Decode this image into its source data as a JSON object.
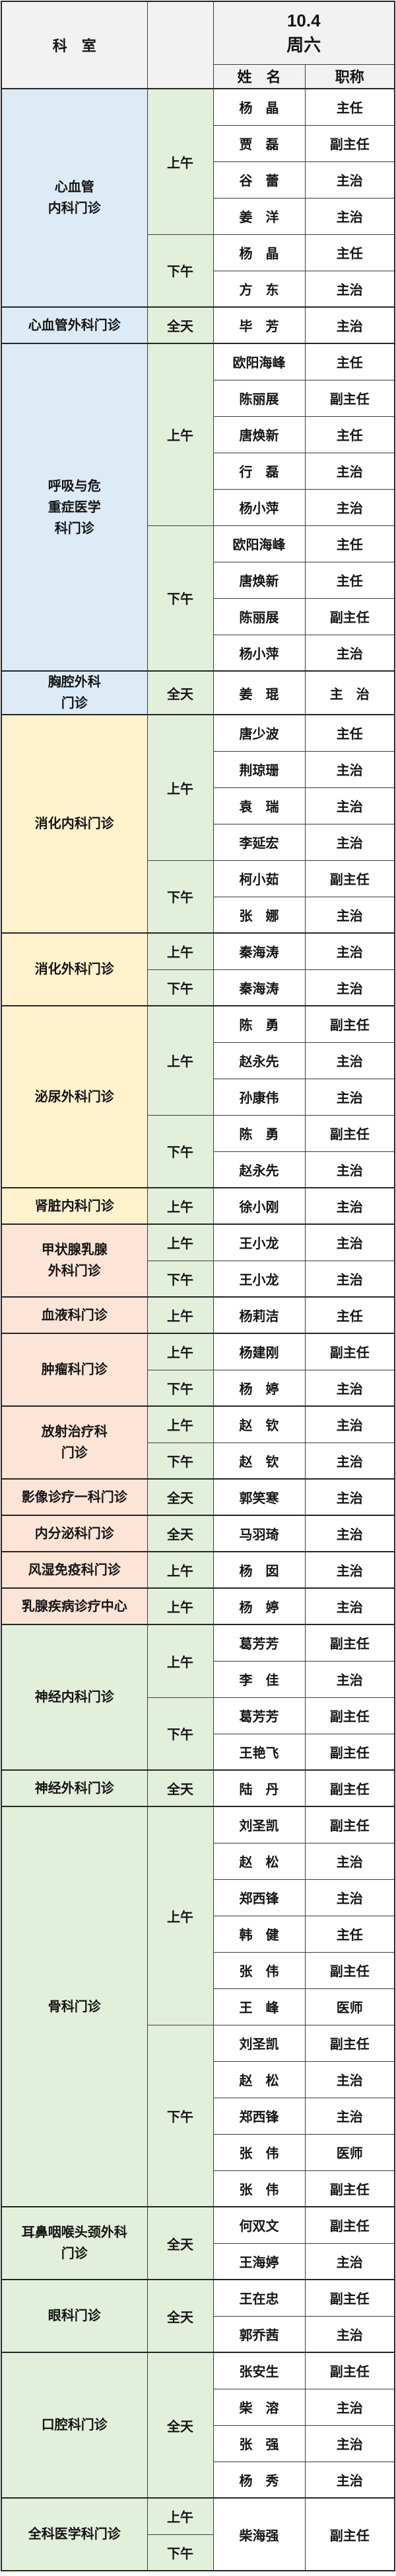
{
  "header": {
    "department_col": "科　室",
    "date": "10.4",
    "weekday": "周六",
    "name_col": "姓　名",
    "title_col": "职称"
  },
  "colors": {
    "header_bg": "#f2f2f2",
    "group_blue": "#ddebf7",
    "group_yellow": "#fff2cc",
    "group_pink": "#fce4d6",
    "group_green": "#e2efda",
    "time_column": "#e2efda",
    "cell_bg": "#ffffff",
    "border": "#262626"
  },
  "time_labels": [
    "上午",
    "下午",
    "全天"
  ],
  "title_labels": [
    "主任",
    "副主任",
    "主治",
    "医师"
  ],
  "sections": [
    {
      "department": "心血管\n内科门诊",
      "color": "blue",
      "blocks": [
        {
          "time": "上午",
          "doctors": [
            {
              "name": "杨　晶",
              "title": "主任"
            },
            {
              "name": "贾　磊",
              "title": "副主任"
            },
            {
              "name": "谷　蕾",
              "title": "主治"
            },
            {
              "name": "姜　洋",
              "title": "主治"
            }
          ]
        },
        {
          "time": "下午",
          "doctors": [
            {
              "name": "杨　晶",
              "title": "主任"
            },
            {
              "name": "方　东",
              "title": "主治"
            }
          ]
        }
      ]
    },
    {
      "department": "心血管外科门诊",
      "color": "blue",
      "blocks": [
        {
          "time": "全天",
          "doctors": [
            {
              "name": "毕　芳",
              "title": "主治"
            }
          ]
        }
      ]
    },
    {
      "department": "呼吸与危\n重症医学\n科门诊",
      "color": "blue",
      "blocks": [
        {
          "time": "上午",
          "doctors": [
            {
              "name": "欧阳海峰",
              "title": "主任"
            },
            {
              "name": "陈丽展",
              "title": "副主任"
            },
            {
              "name": "唐焕新",
              "title": "主任"
            },
            {
              "name": "行　磊",
              "title": "主治"
            },
            {
              "name": "杨小萍",
              "title": "主治"
            }
          ]
        },
        {
          "time": "下午",
          "doctors": [
            {
              "name": "欧阳海峰",
              "title": "主任"
            },
            {
              "name": "唐焕新",
              "title": "主任"
            },
            {
              "name": "陈丽展",
              "title": "副主任"
            },
            {
              "name": "杨小萍",
              "title": "主治"
            }
          ]
        }
      ]
    },
    {
      "department": "胸腔外科\n门诊",
      "color": "blue",
      "blocks": [
        {
          "time": "全天",
          "doctors": [
            {
              "name": "姜　琨",
              "title": "主　治"
            }
          ]
        }
      ]
    },
    {
      "department": "消化内科门诊",
      "color": "yellow",
      "blocks": [
        {
          "time": "上午",
          "doctors": [
            {
              "name": "唐少波",
              "title": "主任"
            },
            {
              "name": "荆琼珊",
              "title": "主治"
            },
            {
              "name": "袁　瑞",
              "title": "主治"
            },
            {
              "name": "李延宏",
              "title": "主治"
            }
          ]
        },
        {
          "time": "下午",
          "doctors": [
            {
              "name": "柯小茹",
              "title": "副主任"
            },
            {
              "name": "张　娜",
              "title": "主治"
            }
          ]
        }
      ]
    },
    {
      "department": "消化外科门诊",
      "color": "yellow",
      "blocks": [
        {
          "time": "上午",
          "doctors": [
            {
              "name": "秦海涛",
              "title": "主治"
            }
          ]
        },
        {
          "time": "下午",
          "doctors": [
            {
              "name": "秦海涛",
              "title": "主治"
            }
          ]
        }
      ]
    },
    {
      "department": "泌尿外科门诊",
      "color": "yellow",
      "blocks": [
        {
          "time": "上午",
          "doctors": [
            {
              "name": "陈　勇",
              "title": "副主任"
            },
            {
              "name": "赵永先",
              "title": "主治"
            },
            {
              "name": "孙康伟",
              "title": "主治"
            }
          ]
        },
        {
          "time": "下午",
          "doctors": [
            {
              "name": "陈　勇",
              "title": "副主任"
            },
            {
              "name": "赵永先",
              "title": "主治"
            }
          ]
        }
      ]
    },
    {
      "department": "肾脏内科门诊",
      "color": "yellow",
      "blocks": [
        {
          "time": "上午",
          "doctors": [
            {
              "name": "徐小刚",
              "title": "主治"
            }
          ]
        }
      ]
    },
    {
      "department": "甲状腺乳腺\n外科门诊",
      "color": "pink",
      "blocks": [
        {
          "time": "上午",
          "doctors": [
            {
              "name": "王小龙",
              "title": "主治"
            }
          ]
        },
        {
          "time": "下午",
          "doctors": [
            {
              "name": "王小龙",
              "title": "主治"
            }
          ]
        }
      ]
    },
    {
      "department": "血液科门诊",
      "color": "pink",
      "blocks": [
        {
          "time": "上午",
          "doctors": [
            {
              "name": "杨莉洁",
              "title": "主任"
            }
          ]
        }
      ]
    },
    {
      "department": "肿瘤科门诊",
      "color": "pink",
      "blocks": [
        {
          "time": "上午",
          "doctors": [
            {
              "name": "杨建刚",
              "title": "副主任"
            }
          ]
        },
        {
          "time": "下午",
          "doctors": [
            {
              "name": "杨　婷",
              "title": "主治"
            }
          ]
        }
      ]
    },
    {
      "department": "放射治疗科\n门诊",
      "color": "pink",
      "blocks": [
        {
          "time": "上午",
          "doctors": [
            {
              "name": "赵　钦",
              "title": "主治"
            }
          ]
        },
        {
          "time": "下午",
          "doctors": [
            {
              "name": "赵　钦",
              "title": "主治"
            }
          ]
        }
      ]
    },
    {
      "department": "影像诊疗一科门诊",
      "color": "pink",
      "blocks": [
        {
          "time": "全天",
          "doctors": [
            {
              "name": "郭笑寒",
              "title": "主治"
            }
          ]
        }
      ]
    },
    {
      "department": "内分泌科门诊",
      "color": "pink",
      "blocks": [
        {
          "time": "全天",
          "doctors": [
            {
              "name": "马羽琦",
              "title": "主治"
            }
          ]
        }
      ]
    },
    {
      "department": "风湿免疫科门诊",
      "color": "pink",
      "blocks": [
        {
          "time": "上午",
          "doctors": [
            {
              "name": "杨　囡",
              "title": "主治"
            }
          ]
        }
      ]
    },
    {
      "department": "乳腺疾病诊疗中心",
      "color": "pink",
      "blocks": [
        {
          "time": "上午",
          "doctors": [
            {
              "name": "杨　婷",
              "title": "主治"
            }
          ]
        }
      ]
    },
    {
      "department": "神经内科门诊",
      "color": "green",
      "blocks": [
        {
          "time": "上午",
          "doctors": [
            {
              "name": "葛芳芳",
              "title": "副主任"
            },
            {
              "name": "李　佳",
              "title": "主治"
            }
          ]
        },
        {
          "time": "下午",
          "doctors": [
            {
              "name": "葛芳芳",
              "title": "副主任"
            },
            {
              "name": "王艳飞",
              "title": "副主任"
            }
          ]
        }
      ]
    },
    {
      "department": "神经外科门诊",
      "color": "green",
      "blocks": [
        {
          "time": "全天",
          "doctors": [
            {
              "name": "陆　丹",
              "title": "副主任"
            }
          ]
        }
      ]
    },
    {
      "department": "骨科门诊",
      "color": "green",
      "blocks": [
        {
          "time": "上午",
          "doctors": [
            {
              "name": "刘圣凯",
              "title": "副主任"
            },
            {
              "name": "赵　松",
              "title": "主治"
            },
            {
              "name": "郑西锋",
              "title": "主治"
            },
            {
              "name": "韩　健",
              "title": "主任"
            },
            {
              "name": "张　伟",
              "title": "副主任"
            },
            {
              "name": "王　峰",
              "title": "医师"
            }
          ]
        },
        {
          "time": "下午",
          "doctors": [
            {
              "name": "刘圣凯",
              "title": "副主任"
            },
            {
              "name": "赵　松",
              "title": "主治"
            },
            {
              "name": "郑西锋",
              "title": "主治"
            },
            {
              "name": "张　伟",
              "title": "医师"
            },
            {
              "name": "张　伟",
              "title": "副主任"
            }
          ]
        }
      ]
    },
    {
      "department": "耳鼻咽喉头颈外科\n门诊",
      "color": "green",
      "blocks": [
        {
          "time": "全天",
          "doctors": [
            {
              "name": "何双文",
              "title": "副主任"
            },
            {
              "name": "王海婷",
              "title": "主治"
            }
          ]
        }
      ]
    },
    {
      "department": "眼科门诊",
      "color": "green",
      "blocks": [
        {
          "time": "全天",
          "doctors": [
            {
              "name": "王在忠",
              "title": "副主任"
            },
            {
              "name": "郭乔茜",
              "title": "主治"
            }
          ]
        }
      ]
    },
    {
      "department": "口腔科门诊",
      "color": "green",
      "blocks": [
        {
          "time": "全天",
          "doctors": [
            {
              "name": "张安生",
              "title": "副主任"
            },
            {
              "name": "柴　溶",
              "title": "主治"
            },
            {
              "name": "张　强",
              "title": "主治"
            },
            {
              "name": "杨　秀",
              "title": "主治"
            }
          ]
        }
      ]
    },
    {
      "department": "全科医学科门诊",
      "color": "green",
      "doctor_spans_blocks": true,
      "blocks": [
        {
          "time": "上午",
          "doctors": [
            {
              "name": "柴海强",
              "title": "副主任"
            }
          ]
        },
        {
          "time": "下午",
          "doctors": []
        }
      ]
    }
  ]
}
